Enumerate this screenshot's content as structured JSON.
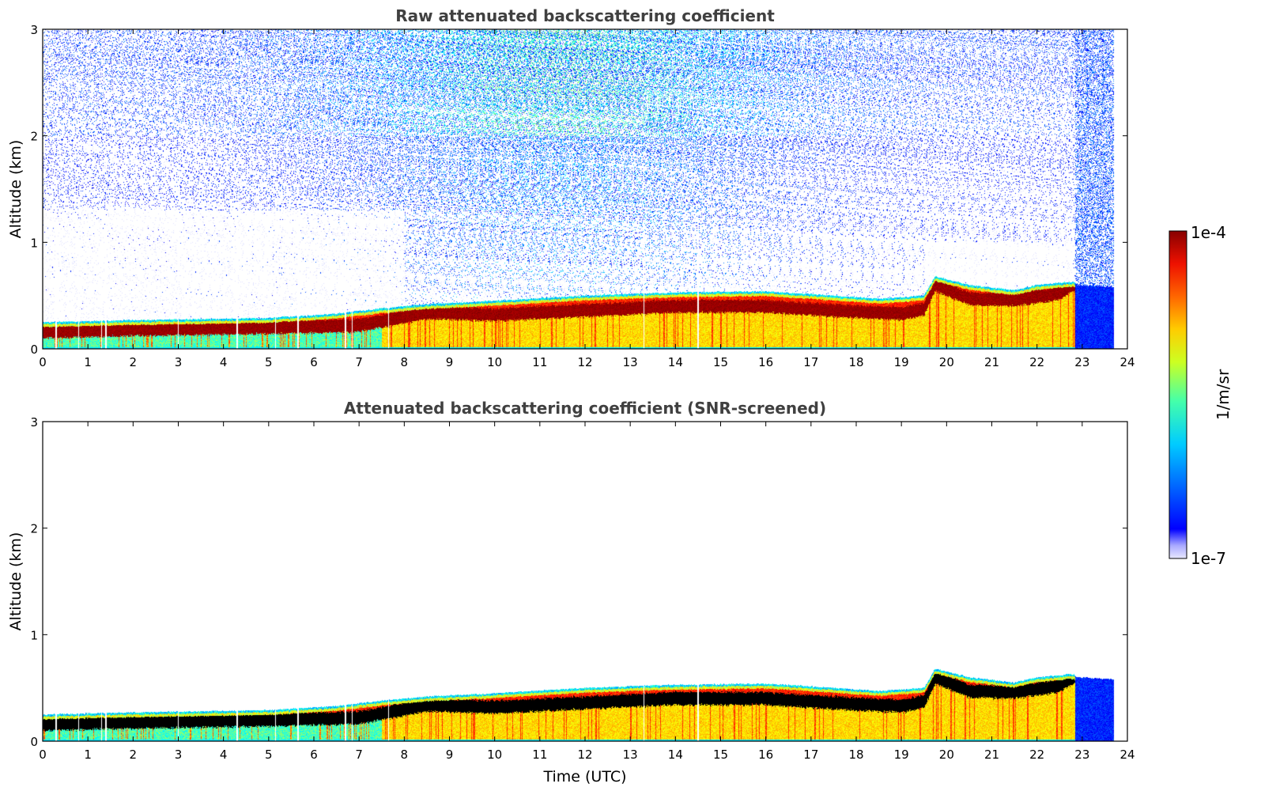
{
  "chart_data": [
    {
      "type": "heatmap",
      "title": "Raw attenuated backscattering coefficient",
      "xlabel": "",
      "ylabel": "Altitude (km)",
      "xlim": [
        0,
        24
      ],
      "ylim": [
        0,
        3
      ],
      "xticks": [
        "0",
        "1",
        "2",
        "3",
        "4",
        "5",
        "6",
        "7",
        "8",
        "9",
        "10",
        "11",
        "12",
        "13",
        "14",
        "15",
        "16",
        "17",
        "18",
        "19",
        "20",
        "21",
        "22",
        "23",
        "24"
      ],
      "yticks": [
        "0",
        "1",
        "2",
        "3"
      ],
      "noise": true,
      "screened": false,
      "layer_top_km": [
        [
          0,
          0.25
        ],
        [
          2,
          0.27
        ],
        [
          5,
          0.29
        ],
        [
          6.5,
          0.33
        ],
        [
          7.5,
          0.38
        ],
        [
          8.5,
          0.42
        ],
        [
          10,
          0.45
        ],
        [
          12,
          0.5
        ],
        [
          14,
          0.53
        ],
        [
          16,
          0.54
        ],
        [
          17.5,
          0.5
        ],
        [
          18.5,
          0.47
        ],
        [
          19.5,
          0.5
        ],
        [
          19.75,
          0.68
        ],
        [
          20.5,
          0.6
        ],
        [
          21.5,
          0.55
        ],
        [
          22,
          0.6
        ],
        [
          22.8,
          0.63
        ],
        [
          22.9,
          0.6
        ],
        [
          23.7,
          0.58
        ]
      ],
      "peak_km": [
        [
          0,
          0.16
        ],
        [
          2,
          0.18
        ],
        [
          5,
          0.2
        ],
        [
          7,
          0.22
        ],
        [
          8.5,
          0.34
        ],
        [
          10,
          0.32
        ],
        [
          12,
          0.36
        ],
        [
          14,
          0.4
        ],
        [
          16,
          0.4
        ],
        [
          17.5,
          0.36
        ],
        [
          19,
          0.33
        ],
        [
          19.5,
          0.37
        ],
        [
          19.75,
          0.6
        ],
        [
          20.5,
          0.47
        ],
        [
          21.5,
          0.46
        ],
        [
          22.5,
          0.52
        ],
        [
          22.8,
          0.6
        ]
      ]
    },
    {
      "type": "heatmap",
      "title": "Attenuated backscattering coefficient (SNR-screened)",
      "xlabel": "Time (UTC)",
      "ylabel": "Altitude (km)",
      "xlim": [
        0,
        24
      ],
      "ylim": [
        0,
        3
      ],
      "xticks": [
        "0",
        "1",
        "2",
        "3",
        "4",
        "5",
        "6",
        "7",
        "8",
        "9",
        "10",
        "11",
        "12",
        "13",
        "14",
        "15",
        "16",
        "17",
        "18",
        "19",
        "20",
        "21",
        "22",
        "23",
        "24"
      ],
      "yticks": [
        "0",
        "1",
        "2",
        "3"
      ],
      "noise": false,
      "screened": true,
      "layer_top_km": [
        [
          0,
          0.25
        ],
        [
          2,
          0.27
        ],
        [
          5,
          0.29
        ],
        [
          6.5,
          0.33
        ],
        [
          7.5,
          0.38
        ],
        [
          8.5,
          0.42
        ],
        [
          10,
          0.45
        ],
        [
          12,
          0.5
        ],
        [
          14,
          0.53
        ],
        [
          16,
          0.54
        ],
        [
          17.5,
          0.5
        ],
        [
          18.5,
          0.47
        ],
        [
          19.5,
          0.5
        ],
        [
          19.75,
          0.68
        ],
        [
          20.5,
          0.6
        ],
        [
          21.5,
          0.55
        ],
        [
          22,
          0.6
        ],
        [
          22.8,
          0.63
        ],
        [
          22.9,
          0.6
        ],
        [
          23.7,
          0.58
        ]
      ],
      "peak_km": [
        [
          0,
          0.16
        ],
        [
          2,
          0.18
        ],
        [
          5,
          0.2
        ],
        [
          7,
          0.22
        ],
        [
          8.5,
          0.34
        ],
        [
          10,
          0.32
        ],
        [
          12,
          0.36
        ],
        [
          14,
          0.4
        ],
        [
          16,
          0.4
        ],
        [
          17.5,
          0.36
        ],
        [
          19,
          0.33
        ],
        [
          19.5,
          0.37
        ],
        [
          19.75,
          0.6
        ],
        [
          20.5,
          0.47
        ],
        [
          21.5,
          0.46
        ],
        [
          22.5,
          0.52
        ],
        [
          22.8,
          0.6
        ]
      ]
    }
  ],
  "colorbar": {
    "label": "1/m/sr",
    "max_label": "1e-4",
    "min_label": "1e-7",
    "colormap": "jet"
  }
}
